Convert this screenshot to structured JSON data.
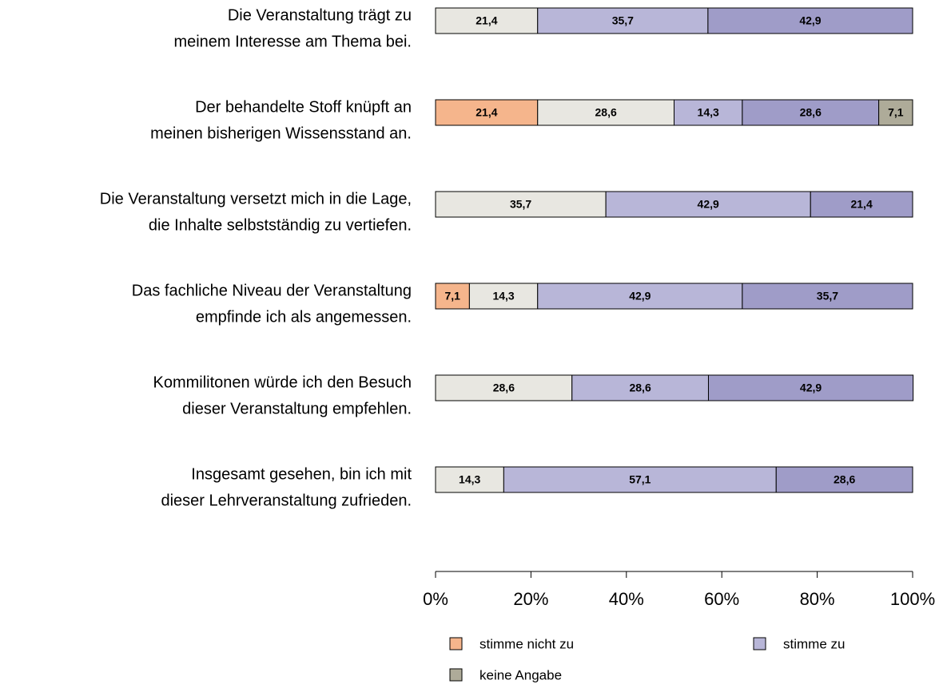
{
  "chart_data": {
    "type": "stacked-bar-horizontal",
    "categories": [
      [
        "Die Veranstaltung trägt zu",
        "meinem Interesse am Thema bei."
      ],
      [
        "Der behandelte Stoff knüpft an",
        "meinen bisherigen Wissensstand an."
      ],
      [
        "Die Veranstaltung versetzt mich in die Lage,",
        "die Inhalte selbstständig zu vertiefen."
      ],
      [
        "Das fachliche Niveau der Veranstaltung",
        "empfinde ich als angemessen."
      ],
      [
        "Kommilitonen würde ich den Besuch",
        "dieser Veranstaltung empfehlen."
      ],
      [
        "Insgesamt gesehen, bin ich mit",
        "dieser Lehrveranstaltung zufrieden."
      ]
    ],
    "series": [
      {
        "name": "stimme nicht zu",
        "color": "#f5b58c",
        "values": [
          null,
          21.4,
          null,
          7.1,
          null,
          null
        ],
        "value_labels": [
          null,
          "21,4",
          null,
          "7,1",
          null,
          null
        ]
      },
      {
        "name": null,
        "color": "#e8e7e1",
        "values": [
          21.4,
          28.6,
          35.7,
          14.3,
          28.6,
          14.3
        ],
        "value_labels": [
          "21,4",
          "28,6",
          "35,7",
          "14,3",
          "28,6",
          "14,3"
        ]
      },
      {
        "name": "stimme zu",
        "color": "#b8b6d8",
        "values": [
          35.7,
          14.3,
          42.9,
          42.9,
          28.6,
          57.1
        ],
        "value_labels": [
          "35,7",
          "14,3",
          "42,9",
          "42,9",
          "28,6",
          "57,1"
        ]
      },
      {
        "name": null,
        "color": "#9f9cc8",
        "values": [
          42.9,
          28.6,
          21.4,
          35.7,
          42.9,
          28.6
        ],
        "value_labels": [
          "42,9",
          "28,6",
          "21,4",
          "35,7",
          "42,9",
          "28,6"
        ]
      },
      {
        "name": "keine Angabe",
        "color": "#aeab99",
        "values": [
          null,
          7.1,
          null,
          null,
          null,
          null
        ],
        "value_labels": [
          null,
          "7,1",
          null,
          null,
          null,
          null
        ]
      }
    ],
    "xlim": [
      0,
      100
    ],
    "xticks": [
      {
        "value": 0,
        "label": "0%"
      },
      {
        "value": 20,
        "label": "20%"
      },
      {
        "value": 40,
        "label": "40%"
      },
      {
        "value": 60,
        "label": "60%"
      },
      {
        "value": 80,
        "label": "80%"
      },
      {
        "value": 100,
        "label": "100%"
      }
    ]
  }
}
